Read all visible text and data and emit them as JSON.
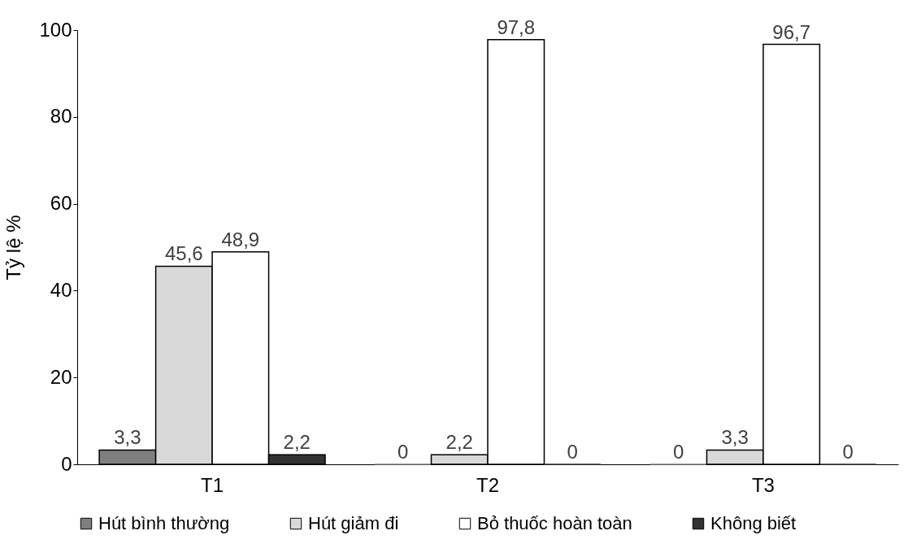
{
  "chart_data": {
    "type": "bar",
    "ylabel": "Tỷ lệ %",
    "categories": [
      "T1",
      "T2",
      "T3"
    ],
    "series": [
      {
        "name": "Hút bình thường",
        "color": "#7f7f7f",
        "values": [
          3.3,
          0,
          0
        ],
        "value_labels": [
          "3,3",
          "0",
          "0"
        ]
      },
      {
        "name": "Hút giảm đi",
        "color": "#d9d9d9",
        "values": [
          45.6,
          2.2,
          3.3
        ],
        "value_labels": [
          "45,6",
          "2,2",
          "3,3"
        ]
      },
      {
        "name": "Bỏ thuốc hoàn toàn",
        "color": "#ffffff",
        "values": [
          48.9,
          97.8,
          96.7
        ],
        "value_labels": [
          "48,9",
          "97,8",
          "96,7"
        ]
      },
      {
        "name": "Không biết",
        "color": "#333333",
        "values": [
          2.2,
          0,
          0
        ],
        "value_labels": [
          "2,2",
          "0",
          "0"
        ]
      }
    ],
    "ylim": [
      0,
      100
    ],
    "yticks": [
      0,
      20,
      40,
      60,
      80,
      100
    ],
    "grid": false,
    "legend": "bottom"
  }
}
